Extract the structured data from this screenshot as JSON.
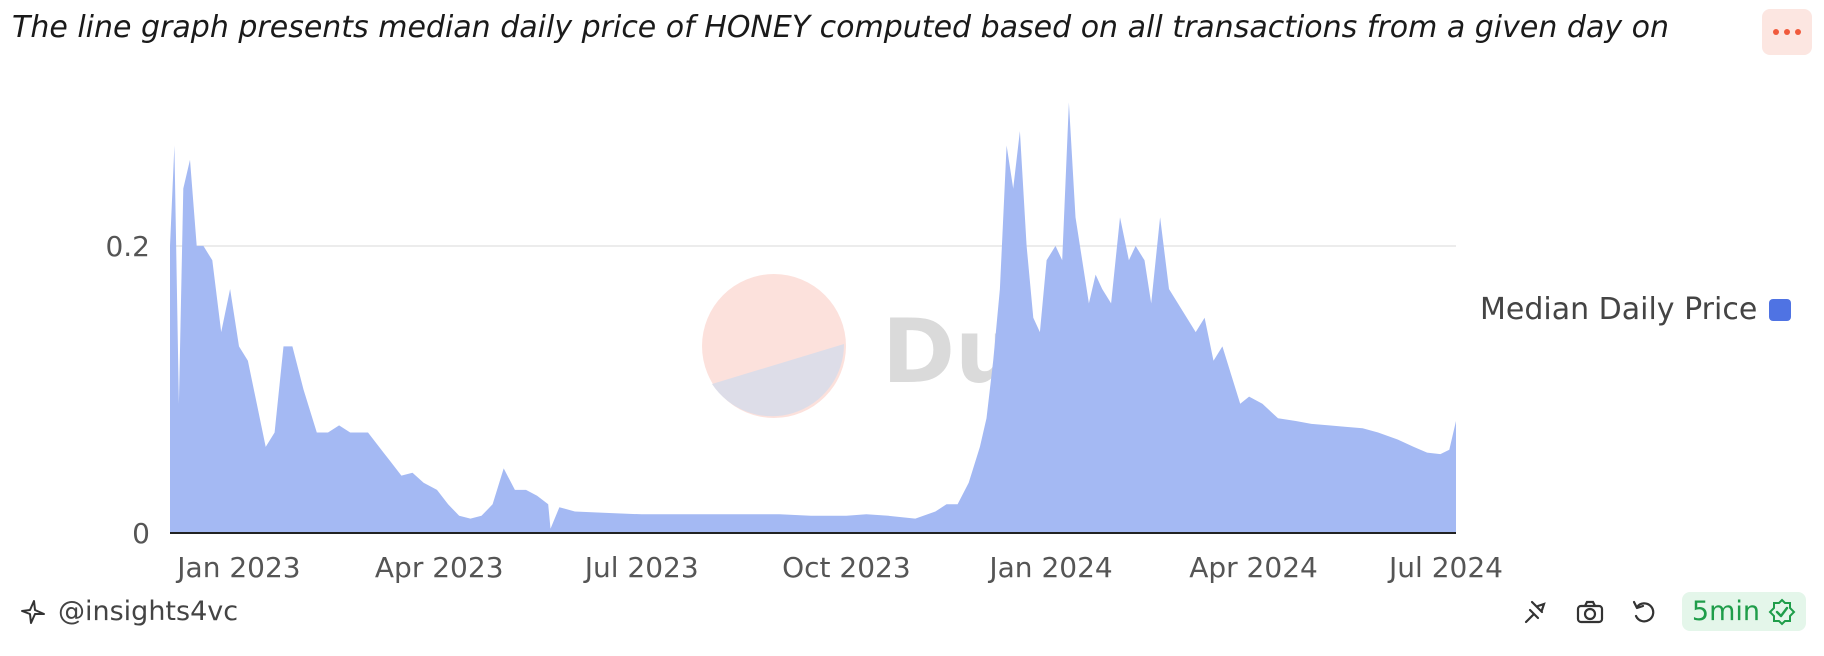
{
  "header": {
    "title": "The line graph presents median daily price of HONEY computed based on all transactions from a given day on"
  },
  "watermark": {
    "text": "Dune"
  },
  "legend": {
    "label": "Median Daily Price",
    "color": "#4f73e3"
  },
  "footer": {
    "author": "@insights4vc",
    "refresh_label": "5min",
    "icons": [
      "pin-icon",
      "camera-icon",
      "refresh-icon",
      "check-badge-icon"
    ]
  },
  "colors": {
    "area_fill": "#a4b9f3",
    "accent": "#f05a3c",
    "badge_green": "#1f9d4a"
  },
  "chart_data": {
    "type": "area",
    "xlabel": "",
    "ylabel": "",
    "x_ticks": [
      "Jan 2023",
      "Apr 2023",
      "Jul 2023",
      "Oct 2023",
      "Jan 2024",
      "Apr 2024",
      "Jul 2024"
    ],
    "y_ticks": [
      "0",
      "0.2"
    ],
    "ylim": [
      0,
      0.3
    ],
    "xlim": [
      "2022-12-01",
      "2024-07-01"
    ],
    "grid": "horizontal",
    "legend_position": "right",
    "series": [
      {
        "name": "Median Daily Price",
        "x": [
          "2022-12-01",
          "2022-12-03",
          "2022-12-05",
          "2022-12-07",
          "2022-12-10",
          "2022-12-13",
          "2022-12-16",
          "2022-12-20",
          "2022-12-24",
          "2022-12-28",
          "2023-01-01",
          "2023-01-05",
          "2023-01-09",
          "2023-01-13",
          "2023-01-17",
          "2023-01-21",
          "2023-01-25",
          "2023-01-30",
          "2023-02-05",
          "2023-02-10",
          "2023-02-15",
          "2023-02-20",
          "2023-02-28",
          "2023-03-05",
          "2023-03-10",
          "2023-03-15",
          "2023-03-20",
          "2023-03-25",
          "2023-03-31",
          "2023-04-05",
          "2023-04-10",
          "2023-04-15",
          "2023-04-20",
          "2023-04-25",
          "2023-04-30",
          "2023-05-05",
          "2023-05-10",
          "2023-05-15",
          "2023-05-20",
          "2023-05-21",
          "2023-05-25",
          "2023-06-01",
          "2023-06-15",
          "2023-07-01",
          "2023-07-15",
          "2023-08-01",
          "2023-08-15",
          "2023-09-01",
          "2023-09-15",
          "2023-10-01",
          "2023-10-10",
          "2023-10-20",
          "2023-11-01",
          "2023-11-10",
          "2023-11-15",
          "2023-11-20",
          "2023-11-25",
          "2023-11-30",
          "2023-12-03",
          "2023-12-06",
          "2023-12-09",
          "2023-12-12",
          "2023-12-15",
          "2023-12-18",
          "2023-12-21",
          "2023-12-24",
          "2023-12-27",
          "2023-12-30",
          "2024-01-03",
          "2024-01-06",
          "2024-01-09",
          "2024-01-12",
          "2024-01-15",
          "2024-01-18",
          "2024-01-21",
          "2024-01-24",
          "2024-01-28",
          "2024-02-01",
          "2024-02-05",
          "2024-02-08",
          "2024-02-12",
          "2024-02-15",
          "2024-02-19",
          "2024-02-23",
          "2024-02-27",
          "2024-03-02",
          "2024-03-06",
          "2024-03-10",
          "2024-03-14",
          "2024-03-18",
          "2024-03-22",
          "2024-03-26",
          "2024-03-30",
          "2024-04-05",
          "2024-04-12",
          "2024-04-20",
          "2024-04-27",
          "2024-05-05",
          "2024-05-12",
          "2024-05-20",
          "2024-05-27",
          "2024-06-05",
          "2024-06-12",
          "2024-06-18",
          "2024-06-24",
          "2024-06-28",
          "2024-07-01"
        ],
        "values": [
          0.2,
          0.27,
          0.09,
          0.24,
          0.26,
          0.2,
          0.2,
          0.19,
          0.14,
          0.17,
          0.13,
          0.12,
          0.09,
          0.06,
          0.07,
          0.13,
          0.13,
          0.1,
          0.07,
          0.07,
          0.075,
          0.07,
          0.07,
          0.06,
          0.05,
          0.04,
          0.042,
          0.035,
          0.03,
          0.02,
          0.012,
          0.01,
          0.012,
          0.02,
          0.045,
          0.03,
          0.03,
          0.026,
          0.02,
          0.003,
          0.018,
          0.015,
          0.014,
          0.013,
          0.013,
          0.013,
          0.013,
          0.013,
          0.012,
          0.012,
          0.013,
          0.012,
          0.01,
          0.015,
          0.02,
          0.02,
          0.035,
          0.06,
          0.08,
          0.12,
          0.17,
          0.27,
          0.24,
          0.28,
          0.2,
          0.15,
          0.14,
          0.19,
          0.2,
          0.19,
          0.3,
          0.22,
          0.19,
          0.16,
          0.18,
          0.17,
          0.16,
          0.22,
          0.19,
          0.2,
          0.19,
          0.16,
          0.22,
          0.17,
          0.16,
          0.15,
          0.14,
          0.15,
          0.12,
          0.13,
          0.11,
          0.09,
          0.095,
          0.09,
          0.08,
          0.078,
          0.076,
          0.075,
          0.074,
          0.073,
          0.07,
          0.065,
          0.06,
          0.056,
          0.055,
          0.058,
          0.078
        ]
      }
    ]
  }
}
